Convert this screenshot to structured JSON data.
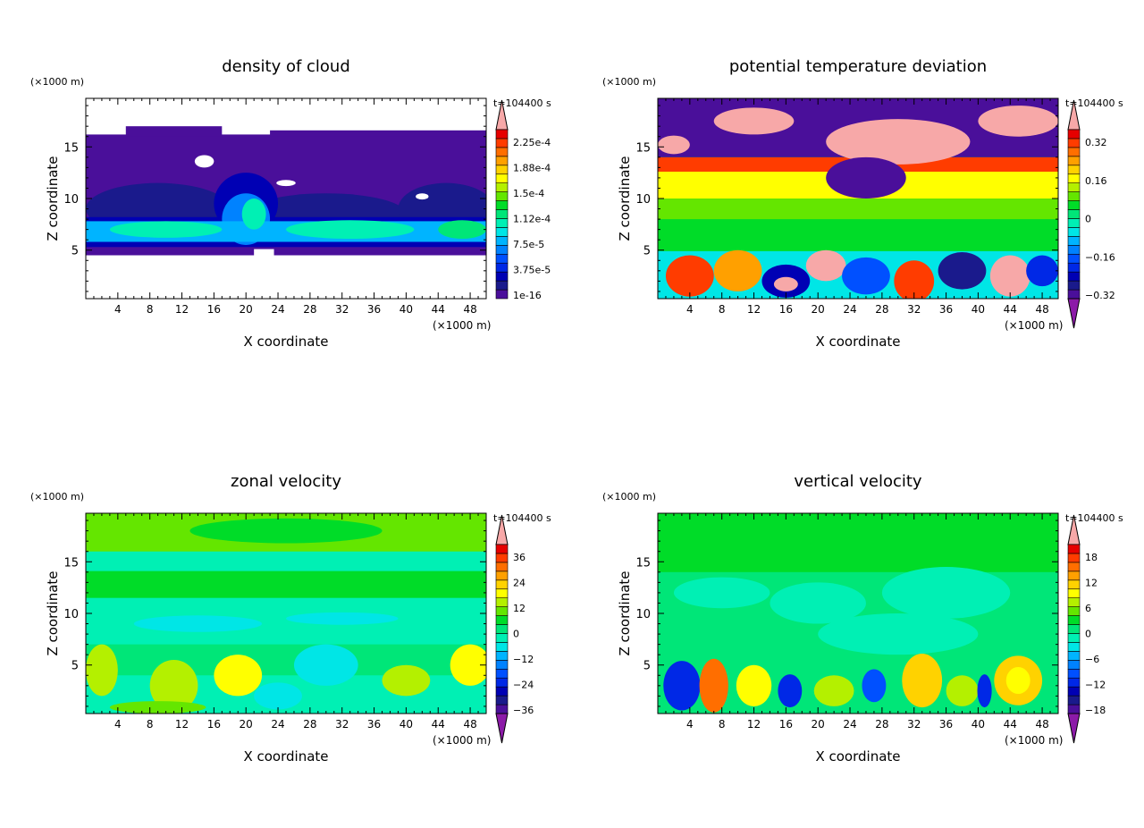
{
  "chart_data": [
    {
      "type": "heatmap",
      "title": "density of cloud",
      "xlabel": "X coordinate",
      "ylabel": "Z coordinate",
      "x_unit": "(×1000 m)",
      "y_unit": "(×1000 m)",
      "time_label": "t=104400 s",
      "xlim": [
        0,
        50
      ],
      "ylim": [
        0.3,
        19.7
      ],
      "xticks": [
        4,
        8,
        12,
        16,
        20,
        24,
        28,
        32,
        36,
        40,
        44,
        48
      ],
      "yticks": [
        5,
        10,
        15
      ],
      "colorbar_labels": [
        "2.25e-4",
        "1.88e-4",
        "1.5e-4",
        "1.12e-4",
        "7.5e-5",
        "3.75e-5",
        "1e-16"
      ],
      "colorbar_low_arrow": false
    },
    {
      "type": "heatmap",
      "title": "potential temperature deviation",
      "xlabel": "X coordinate",
      "ylabel": "Z coordinate",
      "x_unit": "(×1000 m)",
      "y_unit": "(×1000 m)",
      "time_label": "t=104400 s",
      "xlim": [
        0,
        50
      ],
      "ylim": [
        0.3,
        19.7
      ],
      "xticks": [
        4,
        8,
        12,
        16,
        20,
        24,
        28,
        32,
        36,
        40,
        44,
        48
      ],
      "yticks": [
        5,
        10,
        15
      ],
      "colorbar_labels": [
        "0.32",
        "0.16",
        "0",
        "−0.16",
        "−0.32"
      ],
      "colorbar_low_arrow": true
    },
    {
      "type": "heatmap",
      "title": "zonal velocity",
      "xlabel": "X coordinate",
      "ylabel": "Z coordinate",
      "x_unit": "(×1000 m)",
      "y_unit": "(×1000 m)",
      "time_label": "t=104400 s",
      "xlim": [
        0,
        50
      ],
      "ylim": [
        0.3,
        19.7
      ],
      "xticks": [
        4,
        8,
        12,
        16,
        20,
        24,
        28,
        32,
        36,
        40,
        44,
        48
      ],
      "yticks": [
        5,
        10,
        15
      ],
      "colorbar_labels": [
        "36",
        "24",
        "12",
        "0",
        "−12",
        "−24",
        "−36"
      ],
      "colorbar_low_arrow": true
    },
    {
      "type": "heatmap",
      "title": "vertical velocity",
      "xlabel": "X coordinate",
      "ylabel": "Z coordinate",
      "x_unit": "(×1000 m)",
      "y_unit": "(×1000 m)",
      "time_label": "t=104400 s",
      "xlim": [
        0,
        50
      ],
      "ylim": [
        0.3,
        19.7
      ],
      "xticks": [
        4,
        8,
        12,
        16,
        20,
        24,
        28,
        32,
        36,
        40,
        44,
        48
      ],
      "yticks": [
        5,
        10,
        15
      ],
      "colorbar_labels": [
        "18",
        "12",
        "6",
        "0",
        "−6",
        "−12",
        "−18"
      ],
      "colorbar_low_arrow": true
    }
  ],
  "colors": {
    "scale": [
      "#4a0f9a",
      "#1a1a8c",
      "#0000b4",
      "#0028e6",
      "#0050ff",
      "#0082ff",
      "#00b4ff",
      "#00e6e6",
      "#00f0b4",
      "#00e678",
      "#00dc28",
      "#64e600",
      "#b4f000",
      "#ffff00",
      "#ffd200",
      "#ffa000",
      "#ff6e00",
      "#ff3c00",
      "#e60000"
    ],
    "over": "#f7a8a8",
    "under": "#8c1aa8"
  }
}
